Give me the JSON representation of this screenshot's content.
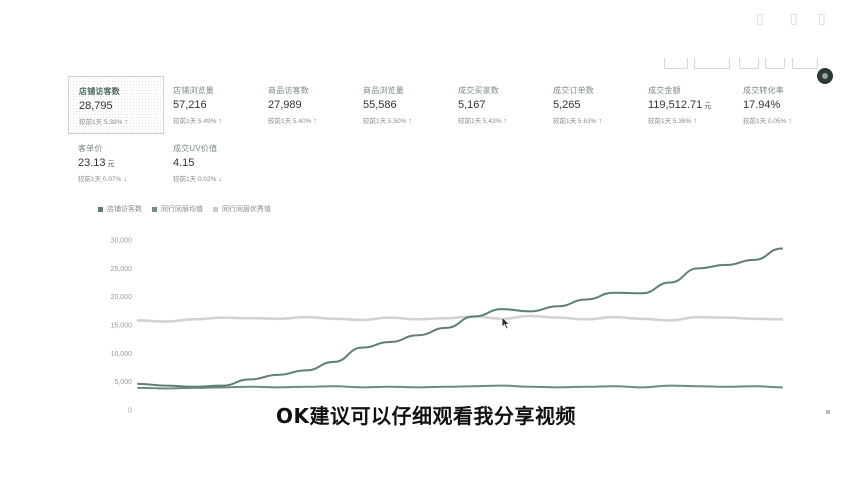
{
  "metrics": [
    {
      "label": "店铺访客数",
      "value": "28,795",
      "unit": "",
      "compare": "较前1天 5.38%",
      "trend": "up",
      "selected": true
    },
    {
      "label": "店铺浏览量",
      "value": "57,216",
      "unit": "",
      "compare": "较前1天 5.49%",
      "trend": "up"
    },
    {
      "label": "商品访客数",
      "value": "27,989",
      "unit": "",
      "compare": "较前1天 5.40%",
      "trend": "up"
    },
    {
      "label": "商品浏览量",
      "value": "55,586",
      "unit": "",
      "compare": "较前1天 5.50%",
      "trend": "up"
    },
    {
      "label": "成交买家数",
      "value": "5,167",
      "unit": "",
      "compare": "较前1天 5.43%",
      "trend": "up"
    },
    {
      "label": "成交订单数",
      "value": "5,265",
      "unit": "",
      "compare": "较前1天 5.63%",
      "trend": "up"
    },
    {
      "label": "成交金额",
      "value": "119,512.71",
      "unit": "元",
      "compare": "较前1天 5.36%",
      "trend": "up"
    },
    {
      "label": "成交转化率",
      "value": "17.94%",
      "unit": "",
      "compare": "较前1天 0.05%",
      "trend": "up"
    },
    {
      "label": "客单价",
      "value": "23.13",
      "unit": "元",
      "compare": "较前1天 0.07%",
      "trend": "down"
    },
    {
      "label": "成交UV价值",
      "value": "4.15",
      "unit": "",
      "compare": "较前1天 0.02%",
      "trend": "down"
    }
  ],
  "legend": [
    {
      "label": "店铺访客数",
      "color": "#5b7d6e"
    },
    {
      "label": "同行同层均值",
      "color": "#6f8f82"
    },
    {
      "label": "同行同层优秀值",
      "color": "#c9cfc7"
    }
  ],
  "subtitle": "OK建议可以仔细观看我分享视频",
  "icons": {
    "trend_up": "↑",
    "trend_down": "↓"
  },
  "chart_data": {
    "type": "line",
    "yticks": [
      "30,000",
      "25,000",
      "20,000",
      "15,000",
      "10,000",
      "5,000",
      "0"
    ],
    "ylim": [
      0,
      30000
    ],
    "series": [
      {
        "name": "店铺访客数",
        "color": "#5f8070",
        "values": [
          4600,
          4300,
          4100,
          4300,
          5400,
          6200,
          7000,
          8500,
          11000,
          12000,
          13200,
          14500,
          16500,
          17800,
          17400,
          18300,
          19500,
          20700,
          20600,
          22500,
          25000,
          25600,
          26500,
          28500
        ]
      },
      {
        "name": "同行同层均值",
        "color": "#6a8b7d",
        "values": [
          3900,
          3800,
          3900,
          4000,
          4100,
          4000,
          4100,
          4200,
          4000,
          4100,
          4000,
          4100,
          4200,
          4300,
          4100,
          4000,
          4100,
          4200,
          4000,
          4300,
          4200,
          4100,
          4200,
          4000
        ]
      },
      {
        "name": "同行同层优秀值",
        "color": "#cfd4cc",
        "values": [
          15800,
          15600,
          16000,
          16300,
          16200,
          16100,
          16400,
          16100,
          15900,
          16300,
          16000,
          16200,
          16500,
          16100,
          16600,
          16300,
          16000,
          16400,
          16100,
          15800,
          16400,
          16300,
          16100,
          16000
        ]
      }
    ]
  }
}
